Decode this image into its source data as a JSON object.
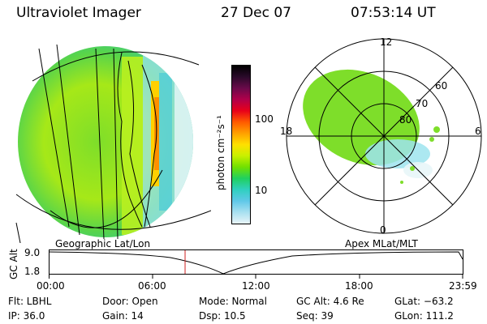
{
  "header": {
    "instrument": "Ultraviolet Imager",
    "date": "27 Dec 07",
    "time": "07:53:14 UT"
  },
  "colorbar": {
    "unit_label": "photon cm⁻²s⁻¹",
    "ticks": [
      "100",
      "10"
    ],
    "colors": [
      "#000000",
      "#2a0a2a",
      "#6a0a4a",
      "#b0004a",
      "#e8001a",
      "#ff5a00",
      "#ffa000",
      "#ffe000",
      "#c8f000",
      "#70e000",
      "#20d060",
      "#30d0c0",
      "#60c8e8",
      "#a8e0f0",
      "#e8f4f8"
    ]
  },
  "polar_plot": {
    "labels": {
      "top": "12",
      "bottom": "0",
      "left": "18",
      "right": "6"
    },
    "lat_labels": [
      "60",
      "70",
      "80"
    ]
  },
  "left_image": {
    "panel_label": "Geographic Lat/Lon"
  },
  "right_image": {
    "panel_label": "Apex MLat/MLT"
  },
  "alt_plot": {
    "ylabel": "GC Alt",
    "y_ticks": [
      "9.0",
      "1.8"
    ],
    "x_ticks": [
      "00:00",
      "06:00",
      "12:00",
      "18:00",
      "23:59"
    ],
    "marker_time": "07:53"
  },
  "info": {
    "filter": "Flt: LBHL",
    "ip": "IP: 36.0",
    "door": "Door: Open",
    "gain": "Gain: 14",
    "mode": "Mode: Normal",
    "dsp": "Dsp:    10.5",
    "gc_alt": "GC Alt: 4.6 Re",
    "seq": "Seq: 39",
    "glat": "GLat: −63.2",
    "glon": "GLon: 111.2"
  }
}
